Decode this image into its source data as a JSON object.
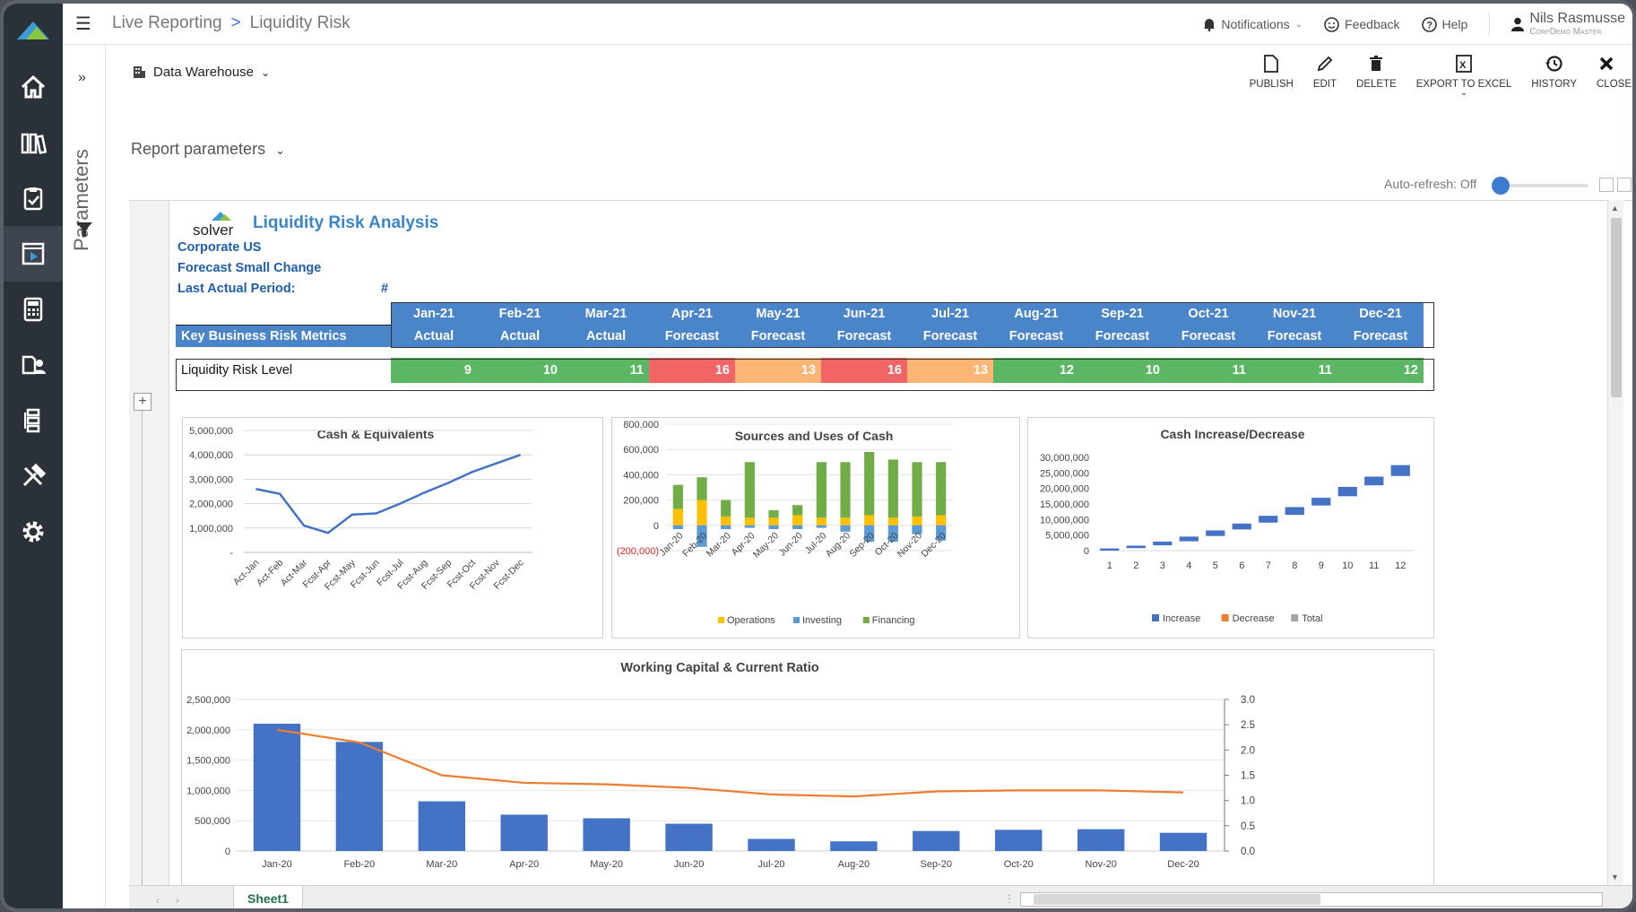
{
  "topbar": {
    "breadcrumb": [
      "Live Reporting",
      "Liquidity Risk"
    ],
    "breadcrumb_sep": ">",
    "notifications": "Notifications",
    "feedback": "Feedback",
    "help": "Help",
    "user_name": "Nils Rasmusse",
    "user_role": "CorpDemo Master"
  },
  "sidebar": {
    "items": [
      "home-icon",
      "library-icon",
      "clipboard-icon",
      "report-icon",
      "calculator-icon",
      "user-docs-icon",
      "hierarchy-icon",
      "tools-icon",
      "gear-icon"
    ],
    "active_index": 3,
    "parameters_label": "Parameters"
  },
  "toolbar": {
    "data_source": "Data Warehouse",
    "actions": [
      "PUBLISH",
      "EDIT",
      "DELETE",
      "EXPORT TO EXCEL",
      "HISTORY",
      "CLOSE"
    ],
    "report_parameters": "Report parameters",
    "auto_refresh": "Auto-refresh: Off"
  },
  "report": {
    "logo_text": "solver",
    "title": "Liquidity Risk Analysis",
    "entity": "Corporate US",
    "scenario": "Forecast Small Change",
    "last_actual_label": "Last Actual Period:",
    "last_actual_value": "#",
    "metrics_label": "Key Business Risk Metrics",
    "row_label": "Liquidity Risk Level",
    "months": [
      "Jan-21",
      "Feb-21",
      "Mar-21",
      "Apr-21",
      "May-21",
      "Jun-21",
      "Jul-21",
      "Aug-21",
      "Sep-21",
      "Oct-21",
      "Nov-21",
      "Dec-21"
    ],
    "types": [
      "Actual",
      "Actual",
      "Actual",
      "Forecast",
      "Forecast",
      "Forecast",
      "Forecast",
      "Forecast",
      "Forecast",
      "Forecast",
      "Forecast",
      "Forecast"
    ],
    "risk_values": [
      "9",
      "10",
      "11",
      "16",
      "13",
      "16",
      "13",
      "12",
      "10",
      "11",
      "11",
      "12"
    ],
    "risk_colors": [
      "green",
      "green",
      "green",
      "red",
      "orange",
      "red",
      "orange",
      "green",
      "green",
      "green",
      "green",
      "green"
    ]
  },
  "chart_data": [
    {
      "type": "line",
      "title": "Cash & Equivalents",
      "categories": [
        "Act-Jan",
        "Act-Feb",
        "Act-Mar",
        "Fcst-Apr",
        "Fcst-May",
        "Fcst-Jun",
        "Fcst-Jul",
        "Fcst-Aug",
        "Fcst-Sep",
        "Fcst-Oct",
        "Fcst-Nov",
        "Fcst-Dec"
      ],
      "values": [
        2600000,
        2400000,
        1100000,
        800000,
        1550000,
        1600000,
        2000000,
        2450000,
        2850000,
        3300000,
        3650000,
        4000000
      ],
      "ytick_labels": [
        "5,000,000",
        "4,000,000",
        "3,000,000",
        "2,000,000",
        "1,000,000",
        "-"
      ],
      "ylim": [
        0,
        5000000
      ],
      "color": "#4472c4"
    },
    {
      "type": "bar",
      "title": "Sources and Uses of Cash",
      "categories": [
        "Jan-20",
        "Feb-20",
        "Mar-20",
        "Apr-20",
        "May-20",
        "Jun-20",
        "Jul-20",
        "Aug-20",
        "Sep-20",
        "Oct-20",
        "Nov-20",
        "Dec-20"
      ],
      "series": [
        {
          "name": "Operations",
          "color": "#ffc000",
          "values": [
            130000,
            200000,
            70000,
            60000,
            60000,
            80000,
            60000,
            60000,
            80000,
            60000,
            70000,
            80000
          ]
        },
        {
          "name": "Investing",
          "color": "#5b9bd5",
          "values": [
            -30000,
            -170000,
            -30000,
            -20000,
            -30000,
            -30000,
            -20000,
            -50000,
            -130000,
            -130000,
            -70000,
            -120000
          ]
        },
        {
          "name": "Financing",
          "color": "#70ad47",
          "values": [
            190000,
            180000,
            130000,
            440000,
            60000,
            80000,
            440000,
            440000,
            500000,
            460000,
            430000,
            420000
          ]
        }
      ],
      "ytick_labels": [
        "800,000",
        "600,000",
        "400,000",
        "200,000",
        "0",
        "(200,000)"
      ],
      "ylim": [
        -200000,
        800000
      ]
    },
    {
      "type": "bar",
      "title": "Cash Increase/Decrease",
      "categories": [
        "1",
        "2",
        "3",
        "4",
        "5",
        "6",
        "7",
        "8",
        "9",
        "10",
        "11",
        "12"
      ],
      "legend": [
        "Increase",
        "Decrease",
        "Total"
      ],
      "legend_colors": [
        "#4472c4",
        "#ed7d31",
        "#a5a5a5"
      ],
      "series": [
        {
          "name": "Increase",
          "low": [
            0,
            800000,
            1700000,
            3000000,
            4700000,
            6800000,
            9000000,
            11500000,
            14500000,
            17500000,
            21000000,
            24000000
          ],
          "high": [
            700000,
            1600000,
            2900000,
            4500000,
            6500000,
            8700000,
            11200000,
            14000000,
            17000000,
            20500000,
            23800000,
            27500000
          ]
        }
      ],
      "ytick_labels": [
        "30,000,000",
        "25,000,000",
        "20,000,000",
        "15,000,000",
        "10,000,000",
        "5,000,000",
        "0"
      ],
      "ylim": [
        0,
        30000000
      ]
    },
    {
      "type": "bar",
      "title": "Working Capital & Current Ratio",
      "categories": [
        "Jan-20",
        "Feb-20",
        "Mar-20",
        "Apr-20",
        "May-20",
        "Jun-20",
        "Jul-20",
        "Aug-20",
        "Sep-20",
        "Oct-20",
        "Nov-20",
        "Dec-20"
      ],
      "series": [
        {
          "name": "Working Capital",
          "type": "bar",
          "color": "#4472c4",
          "values": [
            2100000,
            1800000,
            820000,
            600000,
            540000,
            450000,
            200000,
            160000,
            330000,
            350000,
            360000,
            300000
          ]
        },
        {
          "name": "Current Ratio",
          "type": "line",
          "axis": "right",
          "color": "#ed7d31",
          "values": [
            2.4,
            2.15,
            1.5,
            1.35,
            1.32,
            1.25,
            1.12,
            1.08,
            1.18,
            1.2,
            1.2,
            1.16
          ]
        }
      ],
      "ytick_labels": [
        "2,500,000",
        "2,000,000",
        "1,500,000",
        "1,000,000",
        "500,000",
        "0"
      ],
      "y2tick_labels": [
        "3.0",
        "2.5",
        "2.0",
        "1.5",
        "1.0",
        "0.5",
        "0.0"
      ],
      "ylim": [
        0,
        2500000
      ],
      "y2lim": [
        0,
        3
      ]
    }
  ],
  "sheet": {
    "tab": "Sheet1"
  }
}
